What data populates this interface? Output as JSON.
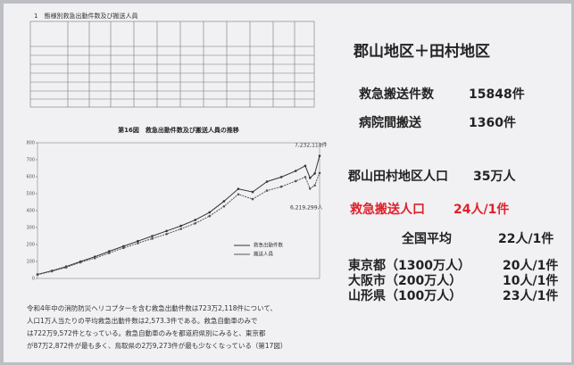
{
  "table_title": "1　態様別救急出動件数及び搬送人員",
  "chart_data": {
    "type": "line",
    "title": "第16図　救急出動件数及び搬送人員の推移",
    "x": [
      1963,
      1966,
      1969,
      1972,
      1975,
      1978,
      1981,
      1984,
      1987,
      1990,
      1993,
      1996,
      1999,
      2002,
      2005,
      2008,
      2011,
      2014,
      2017,
      2019,
      2020,
      2021,
      2022
    ],
    "series": [
      {
        "name": "救急出動件数",
        "color": "#333333",
        "values": [
          24,
          45,
          70,
          100,
          128,
          160,
          190,
          220,
          250,
          280,
          310,
          345,
          390,
          455,
          528,
          510,
          571,
          598,
          634,
          664,
          593,
          619,
          723
        ]
      },
      {
        "name": "搬送人員",
        "color": "#555555",
        "values": [
          22,
          42,
          65,
          95,
          120,
          150,
          180,
          208,
          235,
          262,
          292,
          325,
          368,
          425,
          496,
          468,
          518,
          541,
          574,
          598,
          530,
          549,
          622
        ]
      }
    ],
    "xlim": [
      1963,
      2022
    ],
    "ylim": [
      0,
      800
    ],
    "yticks": [
      0,
      100,
      200,
      300,
      400,
      500,
      600,
      700,
      800
    ],
    "annotations": [
      "7,232,118件",
      "6,219,299人"
    ],
    "legend": "lower right"
  },
  "paragraph": [
    "令和4年中の消防防災ヘリコプターを含む救急出動件数は723万2,118件について、",
    "人口1万人当たりの平均救急出動件数は2,573.3件である。救急自動車のみで",
    "は722万9,572件となっている。救急自動車のみを都道府県別にみると、東京都",
    "が87万2,872件が最も多く、鳥取県の2万9,273件が最も少なくなっている（第17図）"
  ],
  "right_panel": {
    "heading": "郡山地区＋田村地区",
    "rows": [
      {
        "label": "救急搬送件数",
        "value": "15848件"
      },
      {
        "label": "病院間搬送",
        "value": "1360件"
      },
      {
        "label": "郡山田村地区人口",
        "value": "35万人"
      },
      {
        "label": "救急搬送人口",
        "value": "24人/1件"
      },
      {
        "label": "全国平均",
        "value": "22人/1件"
      },
      {
        "label": "東京都（1300万人）",
        "value": "20人/1件"
      },
      {
        "label": "大阪市（200万人）",
        "value": "10人/1件"
      },
      {
        "label": "山形県（100万人）",
        "value": "23人/1件"
      }
    ]
  }
}
